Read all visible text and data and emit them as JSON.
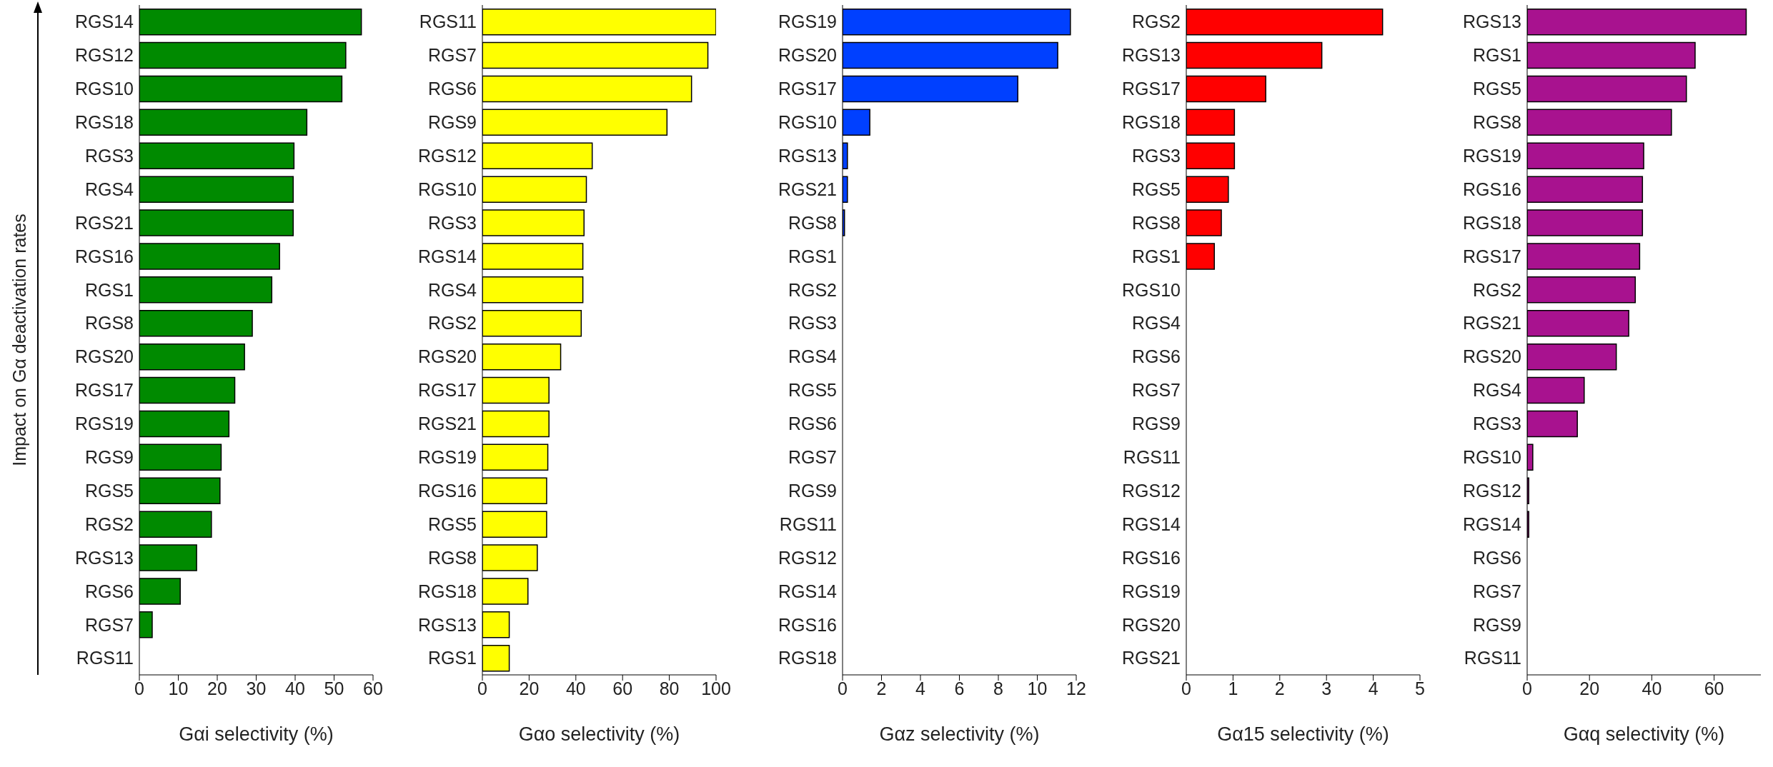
{
  "chart_data": [
    {
      "type": "bar",
      "orientation": "horizontal",
      "ylabel": "Impact on Gα deactivation rates",
      "xlabel": "Gαi selectivity (%)",
      "color": "#008a00",
      "xlim": [
        0,
        60
      ],
      "xticks": [
        0,
        10,
        20,
        30,
        40,
        50,
        60
      ],
      "categories": [
        "RGS14",
        "RGS12",
        "RGS10",
        "RGS18",
        "RGS3",
        "RGS4",
        "RGS21",
        "RGS16",
        "RGS1",
        "RGS8",
        "RGS20",
        "RGS17",
        "RGS19",
        "RGS9",
        "RGS5",
        "RGS2",
        "RGS13",
        "RGS6",
        "RGS7",
        "RGS11"
      ],
      "values": [
        57,
        53,
        52,
        43,
        39.7,
        39.5,
        39.5,
        36,
        34,
        29,
        27,
        24.5,
        23,
        21,
        20.7,
        18.5,
        14.7,
        10.5,
        3.3,
        0
      ]
    },
    {
      "type": "bar",
      "orientation": "horizontal",
      "xlabel": "Gαo selectivity (%)",
      "color": "#ffff00",
      "xlim": [
        0,
        100
      ],
      "xticks": [
        0,
        20,
        40,
        60,
        80,
        100
      ],
      "categories": [
        "RGS11",
        "RGS7",
        "RGS6",
        "RGS9",
        "RGS12",
        "RGS10",
        "RGS3",
        "RGS14",
        "RGS4",
        "RGS2",
        "RGS20",
        "RGS17",
        "RGS21",
        "RGS19",
        "RGS16",
        "RGS5",
        "RGS8",
        "RGS18",
        "RGS13",
        "RGS1"
      ],
      "values": [
        100,
        96.5,
        89.5,
        79,
        47,
        44.5,
        43.5,
        43,
        43,
        42.3,
        33.5,
        28.5,
        28.5,
        28,
        27.5,
        27.5,
        23.5,
        19.5,
        11.5,
        11.5
      ]
    },
    {
      "type": "bar",
      "orientation": "horizontal",
      "xlabel": "Gαz selectivity (%)",
      "color": "#0040ff",
      "xlim": [
        0,
        12
      ],
      "xticks": [
        0,
        2,
        4,
        6,
        8,
        10,
        12
      ],
      "categories": [
        "RGS19",
        "RGS20",
        "RGS17",
        "RGS10",
        "RGS13",
        "RGS21",
        "RGS8",
        "RGS1",
        "RGS2",
        "RGS3",
        "RGS4",
        "RGS5",
        "RGS6",
        "RGS7",
        "RGS9",
        "RGS11",
        "RGS12",
        "RGS14",
        "RGS16",
        "RGS18"
      ],
      "values": [
        11.7,
        11.05,
        9,
        1.4,
        0.25,
        0.25,
        0.1,
        0,
        0,
        0,
        0,
        0,
        0,
        0,
        0,
        0,
        0,
        0,
        0,
        0
      ]
    },
    {
      "type": "bar",
      "orientation": "horizontal",
      "xlabel": "Gα15 selectivity (%)",
      "color": "#ff0000",
      "xlim": [
        0,
        5
      ],
      "xticks": [
        0,
        1,
        2,
        3,
        4,
        5
      ],
      "categories": [
        "RGS2",
        "RGS13",
        "RGS17",
        "RGS18",
        "RGS3",
        "RGS5",
        "RGS8",
        "RGS1",
        "RGS10",
        "RGS4",
        "RGS6",
        "RGS7",
        "RGS9",
        "RGS11",
        "RGS12",
        "RGS14",
        "RGS16",
        "RGS19",
        "RGS20",
        "RGS21"
      ],
      "values": [
        4.2,
        2.9,
        1.7,
        1.03,
        1.03,
        0.9,
        0.75,
        0.6,
        0,
        0,
        0,
        0,
        0,
        0,
        0,
        0,
        0,
        0,
        0,
        0
      ]
    },
    {
      "type": "bar",
      "orientation": "horizontal",
      "xlabel": "Gαq selectivity (%)",
      "color": "#a8128f",
      "xlim": [
        0,
        75
      ],
      "xticks": [
        0,
        20,
        40,
        60
      ],
      "categories": [
        "RGS13",
        "RGS1",
        "RGS5",
        "RGS8",
        "RGS19",
        "RGS16",
        "RGS18",
        "RGS17",
        "RGS2",
        "RGS21",
        "RGS20",
        "RGS4",
        "RGS3",
        "RGS10",
        "RGS12",
        "RGS14",
        "RGS6",
        "RGS7",
        "RGS9",
        "RGS11"
      ],
      "values": [
        70.3,
        53.9,
        51.1,
        46.3,
        37.4,
        37,
        37,
        36.1,
        34.7,
        32.6,
        28.6,
        18.3,
        16.1,
        1.8,
        0.5,
        0.5,
        0,
        0,
        0,
        0
      ]
    }
  ]
}
